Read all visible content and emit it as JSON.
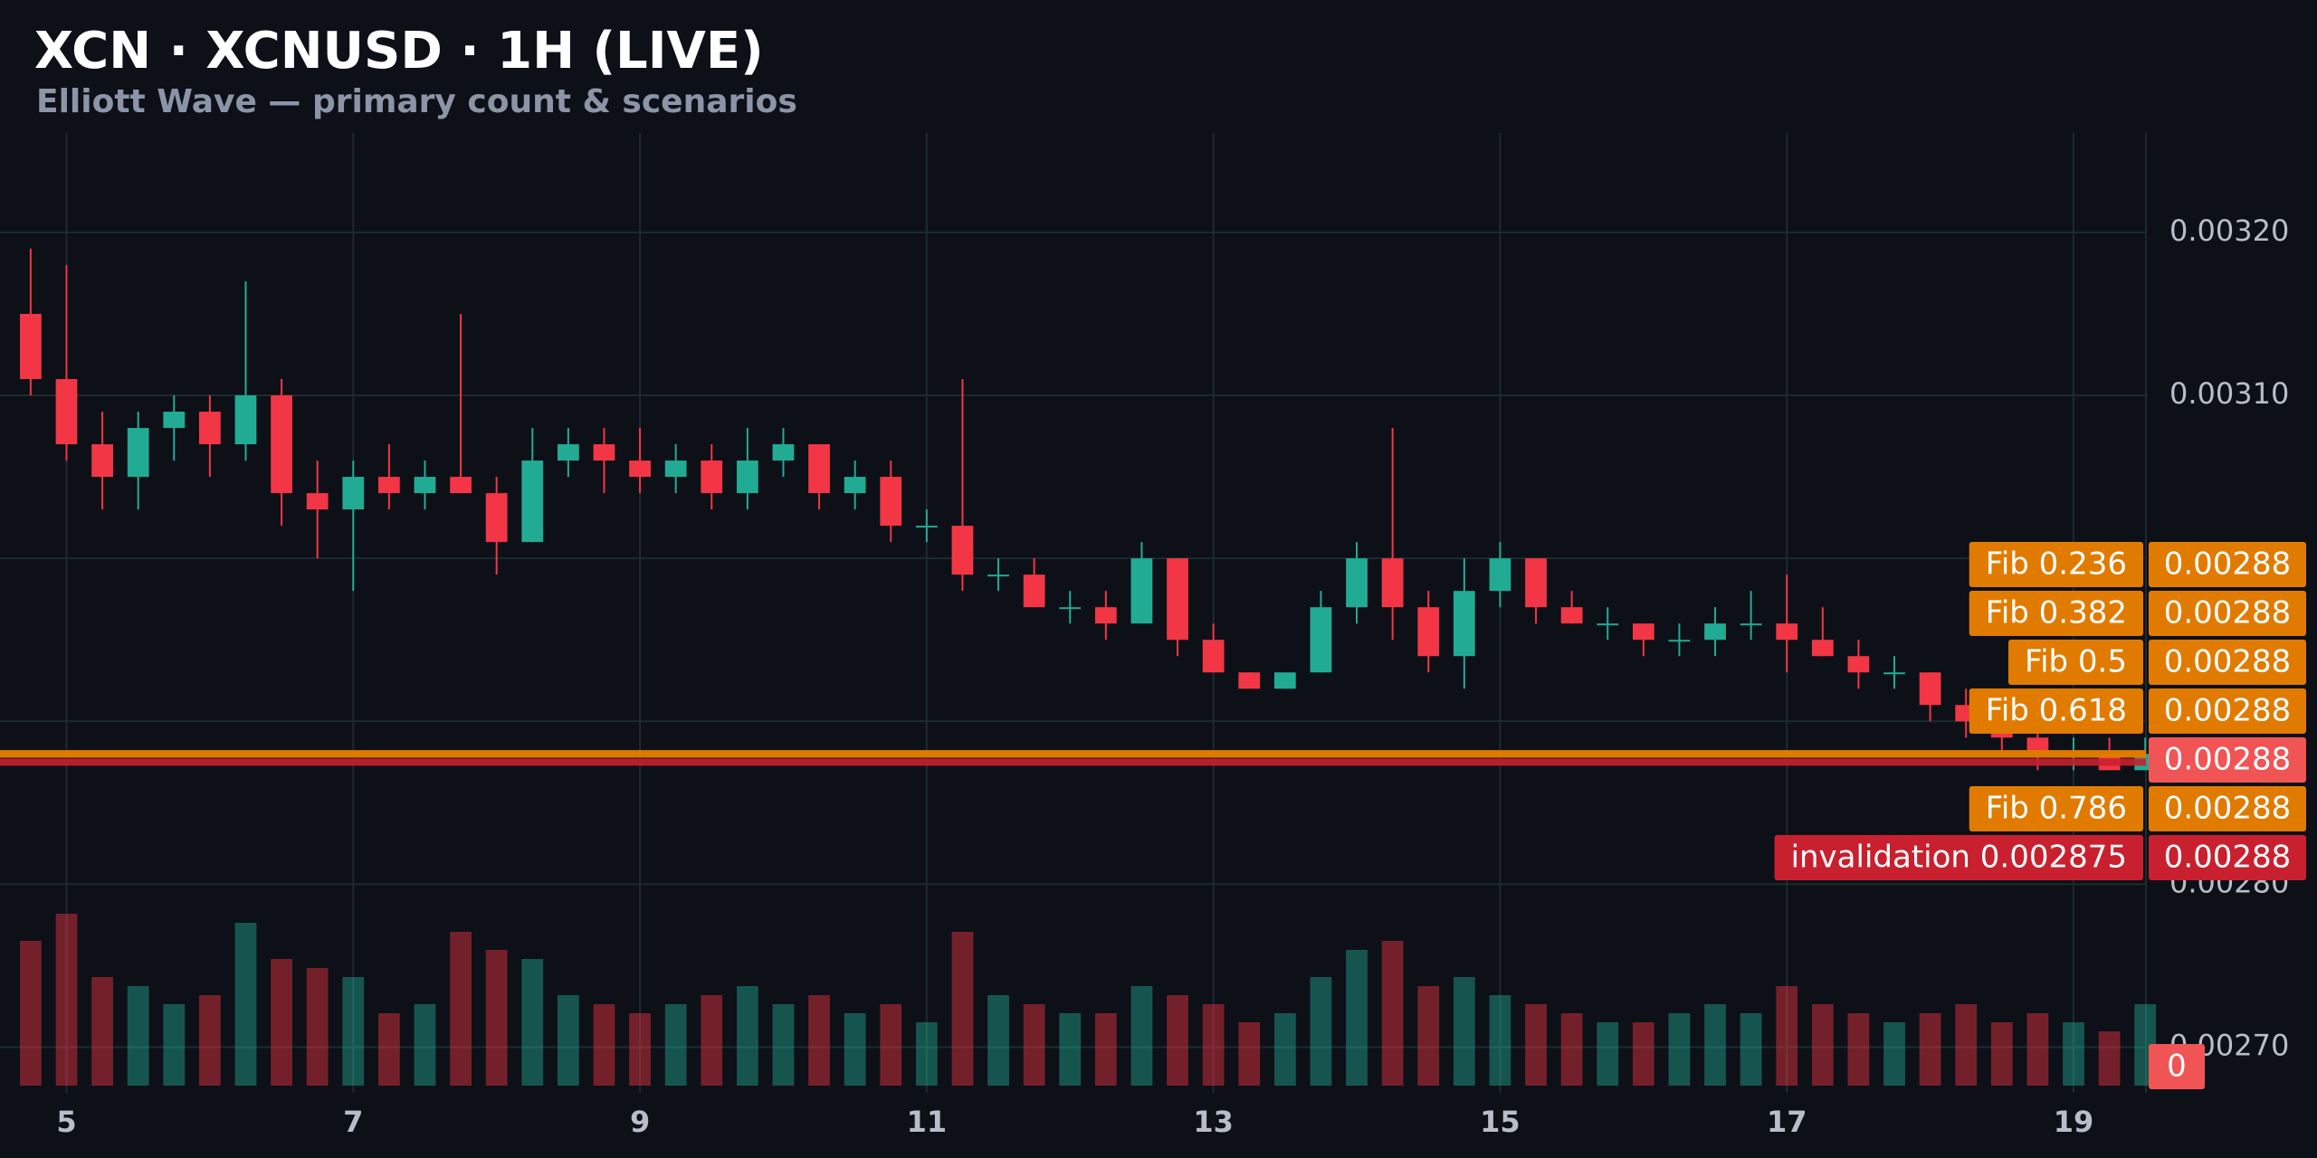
{
  "chart_data": {
    "type": "candlestick",
    "title": "XCN · XCNUSD · 1H (LIVE)",
    "subtitle": "Elliott Wave — primary count & scenarios",
    "xlim": [
      4.536,
      19.505
    ],
    "xticks": [
      5,
      7,
      9,
      11,
      13,
      15,
      17,
      19
    ],
    "ylim": [
      0.002672,
      0.003261
    ],
    "yticks": [
      {
        "value": 0.0027,
        "label": "0.00270"
      },
      {
        "value": 0.0028,
        "label": "0.00280"
      },
      {
        "value": 0.0029,
        "label": "0.00290"
      },
      {
        "value": 0.003,
        "label": "0.00300"
      },
      {
        "value": 0.0031,
        "label": "0.00310"
      },
      {
        "value": 0.0032,
        "label": "0.00320"
      }
    ],
    "grid": true,
    "up_color": "#22ab94",
    "down_color": "#f23645",
    "x": [
      4.75,
      5,
      5.25,
      5.5,
      5.75,
      6,
      6.25,
      6.5,
      6.75,
      7,
      7.25,
      7.5,
      7.75,
      8,
      8.25,
      8.5,
      8.75,
      9,
      9.25,
      9.5,
      9.75,
      10,
      10.25,
      10.5,
      10.75,
      11,
      11.25,
      11.5,
      11.75,
      12,
      12.25,
      12.5,
      12.75,
      13,
      13.25,
      13.5,
      13.75,
      14,
      14.25,
      14.5,
      14.75,
      15,
      15.25,
      15.5,
      15.75,
      16,
      16.25,
      16.5,
      16.75,
      17,
      17.25,
      17.5,
      17.75,
      18,
      18.25,
      18.5,
      18.75,
      19,
      19.25,
      19.5
    ],
    "ohlc": [
      [
        0.00315,
        0.00319,
        0.0031,
        0.00311
      ],
      [
        0.00311,
        0.00318,
        0.00306,
        0.00307
      ],
      [
        0.00307,
        0.00309,
        0.00303,
        0.00305
      ],
      [
        0.00305,
        0.00309,
        0.00303,
        0.00308
      ],
      [
        0.00308,
        0.0031,
        0.00306,
        0.00309
      ],
      [
        0.00309,
        0.0031,
        0.00305,
        0.00307
      ],
      [
        0.00307,
        0.00317,
        0.00306,
        0.0031
      ],
      [
        0.0031,
        0.00311,
        0.00302,
        0.00304
      ],
      [
        0.00304,
        0.00306,
        0.003,
        0.00303
      ],
      [
        0.00303,
        0.00306,
        0.00298,
        0.00305
      ],
      [
        0.00305,
        0.00307,
        0.00303,
        0.00304
      ],
      [
        0.00304,
        0.00306,
        0.00303,
        0.00305
      ],
      [
        0.00305,
        0.00315,
        0.00304,
        0.00304
      ],
      [
        0.00304,
        0.00305,
        0.00299,
        0.00301
      ],
      [
        0.00301,
        0.00308,
        0.00301,
        0.00306
      ],
      [
        0.00306,
        0.00308,
        0.00305,
        0.00307
      ],
      [
        0.00307,
        0.00308,
        0.00304,
        0.00306
      ],
      [
        0.00306,
        0.00308,
        0.00304,
        0.00305
      ],
      [
        0.00305,
        0.00307,
        0.00304,
        0.00306
      ],
      [
        0.00306,
        0.00307,
        0.00303,
        0.00304
      ],
      [
        0.00304,
        0.00308,
        0.00303,
        0.00306
      ],
      [
        0.00306,
        0.00308,
        0.00305,
        0.00307
      ],
      [
        0.00307,
        0.00307,
        0.00303,
        0.00304
      ],
      [
        0.00304,
        0.00306,
        0.00303,
        0.00305
      ],
      [
        0.00305,
        0.00306,
        0.00301,
        0.00302
      ],
      [
        0.00302,
        0.00303,
        0.00301,
        0.00302
      ],
      [
        0.00302,
        0.00311,
        0.00298,
        0.00299
      ],
      [
        0.00299,
        0.003,
        0.00298,
        0.00299
      ],
      [
        0.00299,
        0.003,
        0.00297,
        0.00297
      ],
      [
        0.00297,
        0.00298,
        0.00296,
        0.00297
      ],
      [
        0.00297,
        0.00298,
        0.00295,
        0.00296
      ],
      [
        0.00296,
        0.00301,
        0.00296,
        0.003
      ],
      [
        0.003,
        0.003,
        0.00294,
        0.00295
      ],
      [
        0.00295,
        0.00296,
        0.00293,
        0.00293
      ],
      [
        0.00293,
        0.00293,
        0.00292,
        0.00292
      ],
      [
        0.00292,
        0.00293,
        0.00292,
        0.00293
      ],
      [
        0.00293,
        0.00298,
        0.00293,
        0.00297
      ],
      [
        0.00297,
        0.00301,
        0.00296,
        0.003
      ],
      [
        0.003,
        0.00308,
        0.00295,
        0.00297
      ],
      [
        0.00297,
        0.00298,
        0.00293,
        0.00294
      ],
      [
        0.00294,
        0.003,
        0.00292,
        0.00298
      ],
      [
        0.00298,
        0.00301,
        0.00297,
        0.003
      ],
      [
        0.003,
        0.003,
        0.00296,
        0.00297
      ],
      [
        0.00297,
        0.00298,
        0.00296,
        0.00296
      ],
      [
        0.00296,
        0.00297,
        0.00295,
        0.00296
      ],
      [
        0.00296,
        0.00296,
        0.00294,
        0.00295
      ],
      [
        0.00295,
        0.00296,
        0.00294,
        0.00295
      ],
      [
        0.00295,
        0.00297,
        0.00294,
        0.00296
      ],
      [
        0.00296,
        0.00298,
        0.00295,
        0.00296
      ],
      [
        0.00296,
        0.00299,
        0.00293,
        0.00295
      ],
      [
        0.00295,
        0.00297,
        0.00294,
        0.00294
      ],
      [
        0.00294,
        0.00295,
        0.00292,
        0.00293
      ],
      [
        0.00293,
        0.00294,
        0.00292,
        0.00293
      ],
      [
        0.00293,
        0.00293,
        0.0029,
        0.00291
      ],
      [
        0.00291,
        0.00292,
        0.00289,
        0.0029
      ],
      [
        0.0029,
        0.00291,
        0.00288,
        0.00289
      ],
      [
        0.00289,
        0.0029,
        0.00287,
        0.00288
      ],
      [
        0.00288,
        0.00289,
        0.00287,
        0.00288
      ],
      [
        0.00288,
        0.00289,
        0.00287,
        0.00287
      ],
      [
        0.00287,
        0.00289,
        0.00287,
        0.00288
      ]
    ],
    "volume": [
      80,
      95,
      60,
      55,
      45,
      50,
      90,
      70,
      65,
      60,
      40,
      45,
      85,
      75,
      70,
      50,
      45,
      40,
      45,
      50,
      55,
      45,
      50,
      40,
      45,
      35,
      85,
      50,
      45,
      40,
      40,
      55,
      50,
      45,
      35,
      40,
      60,
      75,
      80,
      55,
      60,
      50,
      45,
      40,
      35,
      35,
      40,
      45,
      40,
      55,
      45,
      40,
      35,
      40,
      45,
      35,
      40,
      35,
      30,
      45
    ],
    "levels": [
      {
        "name": "Fib 0.236",
        "value": 0.00288,
        "label": "0.00288",
        "color": "#e07b00"
      },
      {
        "name": "Fib 0.382",
        "value": 0.00288,
        "label": "0.00288",
        "color": "#e07b00"
      },
      {
        "name": "Fib 0.5",
        "value": 0.00288,
        "label": "0.00288",
        "color": "#e07b00"
      },
      {
        "name": "Fib 0.618",
        "value": 0.00288,
        "label": "0.00288",
        "color": "#e07b00"
      },
      {
        "name": "Fib 0.786",
        "value": 0.00288,
        "label": "0.00288",
        "color": "#e07b00"
      },
      {
        "name": "invalidation 0.002875",
        "value": 0.002875,
        "label": "0.00288",
        "color": "#c8202f"
      }
    ],
    "last_price": 0.00288,
    "last_price_color": "#f05454",
    "last_volume": 0
  }
}
